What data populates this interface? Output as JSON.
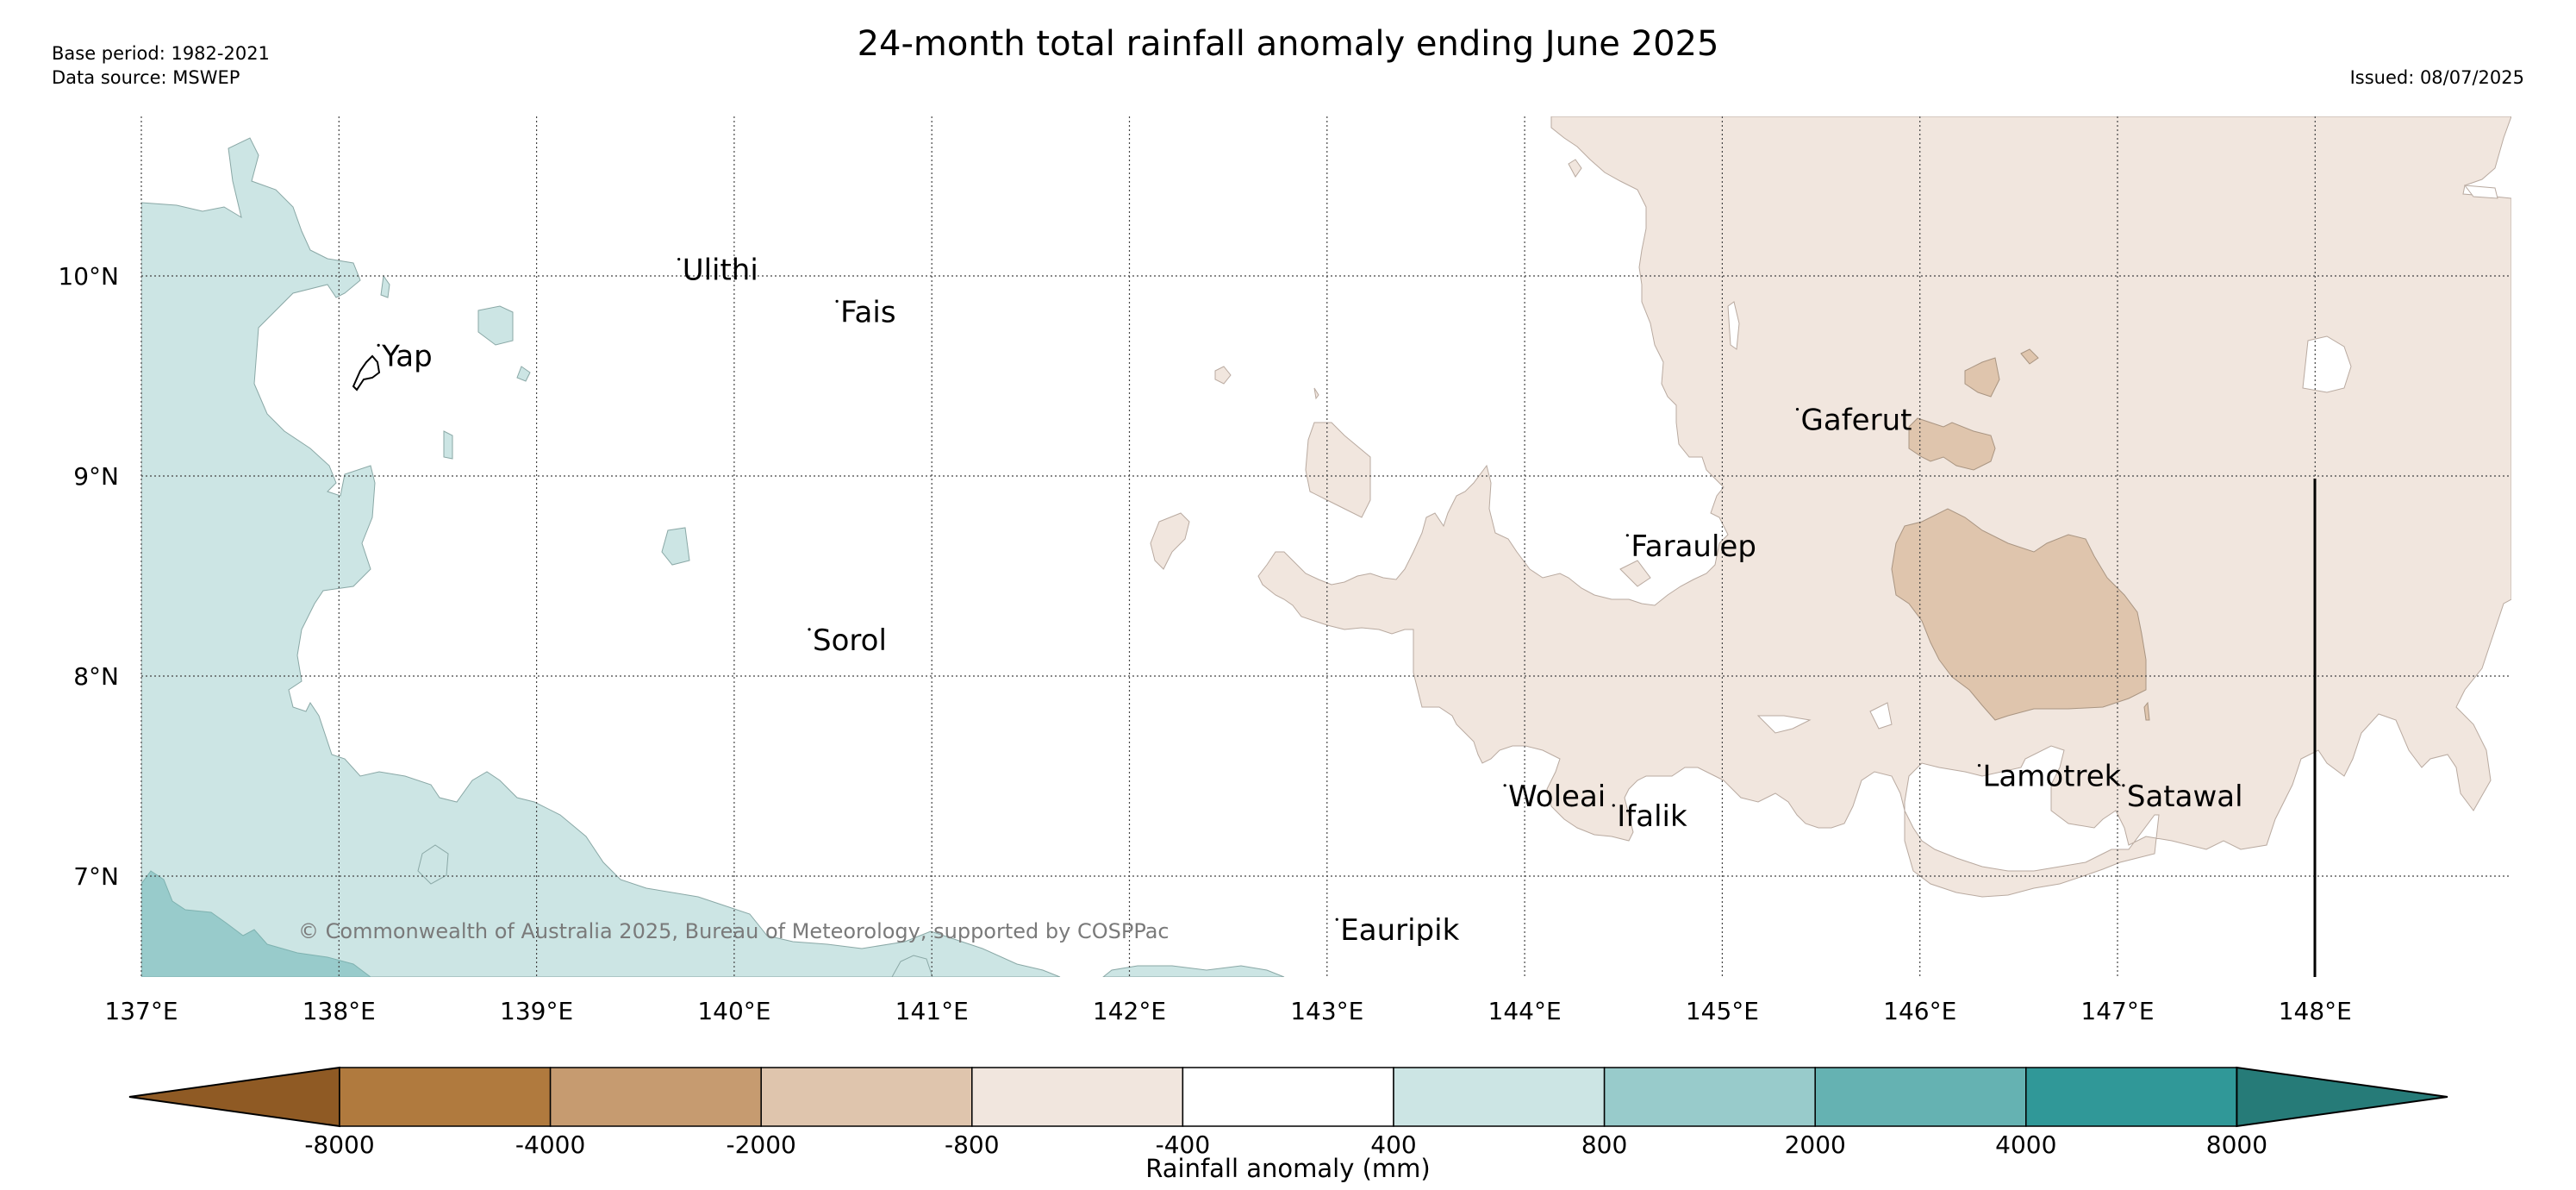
{
  "header": {
    "title": "24-month total rainfall anomaly ending June 2025",
    "base_period": "Base period: 1982-2021",
    "data_source": "Data source: MSWEP",
    "issued": "Issued: 08/07/2025"
  },
  "map": {
    "lat_ticks": [
      "10°N",
      "9°N",
      "8°N",
      "7°N"
    ],
    "lon_ticks": [
      "137°E",
      "138°E",
      "139°E",
      "140°E",
      "141°E",
      "142°E",
      "143°E",
      "144°E",
      "145°E",
      "146°E",
      "147°E",
      "148°E"
    ],
    "places": [
      {
        "name": "Yap",
        "lon": 138.2,
        "lat": 9.55
      },
      {
        "name": "Ulithi",
        "lon": 139.72,
        "lat": 9.98
      },
      {
        "name": "Fais",
        "lon": 140.52,
        "lat": 9.77
      },
      {
        "name": "Sorol",
        "lon": 140.38,
        "lat": 8.13
      },
      {
        "name": "Gaferut",
        "lon": 145.38,
        "lat": 9.23
      },
      {
        "name": "Faraulep",
        "lon": 144.52,
        "lat": 8.6
      },
      {
        "name": "Woleai",
        "lon": 143.9,
        "lat": 7.35
      },
      {
        "name": "Ifalik",
        "lon": 144.45,
        "lat": 7.25
      },
      {
        "name": "Lamotrek",
        "lon": 146.3,
        "lat": 7.45
      },
      {
        "name": "Satawal",
        "lon": 147.03,
        "lat": 7.35
      },
      {
        "name": "Eauripik",
        "lon": 143.05,
        "lat": 6.68
      }
    ],
    "copyright": "© Commonwealth of Australia 2025, Bureau of Meteorology, supported by COSPPac"
  },
  "colorbar": {
    "title": "Rainfall anomaly (mm)",
    "labels": [
      "-8000",
      "-4000",
      "-2000",
      "-800",
      "-400",
      "400",
      "800",
      "2000",
      "4000",
      "8000"
    ],
    "colors": [
      "#8f5a24",
      "#b07a3e",
      "#c69b70",
      "#dfc5ad",
      "#f1e6de",
      "#ffffff",
      "#cce5e4",
      "#98cbcb",
      "#65b2b2",
      "#309898",
      "#267b78"
    ]
  }
}
